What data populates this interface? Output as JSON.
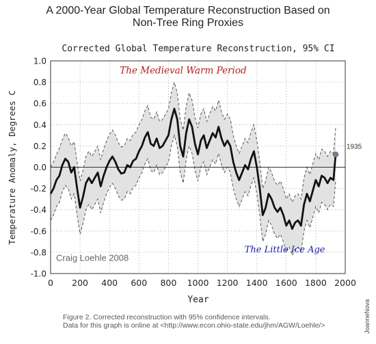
{
  "page": {
    "headline_line1": "A 2000-Year Global Temperature Reconstruction Based on",
    "headline_line2": "Non-Tree Ring Proxies",
    "caption_line1": "Figure 2. Corrected reconstruction with 95% confidence intervals.",
    "caption_line2": "Data for this graph is online at <http://www.econ.ohio-state.edu/jhm/AGW/Loehle/>",
    "watermark": "JoanneNova"
  },
  "chart_data": {
    "type": "line",
    "title": "Corrected Global Temperature Reconstruction, 95% CI",
    "xlabel": "Year",
    "ylabel": "Temperature Anomaly, Degrees C",
    "xlim": [
      0,
      2000
    ],
    "ylim": [
      -1.0,
      1.0
    ],
    "xticks": [
      0,
      200,
      400,
      600,
      800,
      1000,
      1200,
      1400,
      1600,
      1800,
      2000
    ],
    "yticks": [
      1.0,
      0.8,
      0.6,
      0.4,
      0.2,
      0.0,
      -0.2,
      -0.4,
      -0.6,
      -0.8,
      -1.0
    ],
    "grid": true,
    "colors": {
      "series": "#111111",
      "band": "#e2e2e2",
      "band_edge": "#555555",
      "marker": "#7a7a9c",
      "medieval": "#b01e1e",
      "lia": "#1a1aa8"
    },
    "annotations": [
      {
        "text": "The Medieval Warm Period",
        "x": 900,
        "y": 0.88
      },
      {
        "text": "The Little Ice Age",
        "x": 1590,
        "y": -0.8
      },
      {
        "text": "Craig Loehle 2008",
        "x": 40,
        "y": -0.88
      },
      {
        "text": "1935",
        "x": 1935,
        "y": 0.12
      }
    ],
    "series": [
      {
        "x": [
          0,
          20,
          40,
          60,
          80,
          100,
          120,
          140,
          160,
          180,
          200,
          220,
          240,
          260,
          280,
          300,
          320,
          340,
          360,
          380,
          400,
          420,
          440,
          460,
          480,
          500,
          520,
          540,
          560,
          580,
          600,
          620,
          640,
          660,
          680,
          700,
          720,
          740,
          760,
          780,
          800,
          820,
          840,
          860,
          880,
          900,
          920,
          940,
          960,
          980,
          1000,
          1020,
          1040,
          1060,
          1080,
          1100,
          1120,
          1140,
          1160,
          1180,
          1200,
          1220,
          1240,
          1260,
          1280,
          1300,
          1320,
          1340,
          1360,
          1380,
          1400,
          1420,
          1440,
          1460,
          1480,
          1500,
          1520,
          1540,
          1560,
          1580,
          1600,
          1620,
          1640,
          1660,
          1680,
          1700,
          1720,
          1740,
          1760,
          1780,
          1800,
          1820,
          1840,
          1860,
          1880,
          1900,
          1920,
          1935
        ],
        "values": [
          -0.25,
          -0.2,
          -0.12,
          -0.08,
          0.02,
          0.08,
          0.05,
          -0.05,
          0.0,
          -0.2,
          -0.38,
          -0.28,
          -0.15,
          -0.1,
          -0.15,
          -0.1,
          -0.05,
          -0.18,
          -0.08,
          0.0,
          0.06,
          0.1,
          0.05,
          -0.02,
          -0.06,
          -0.05,
          0.02,
          0.0,
          0.06,
          0.08,
          0.15,
          0.2,
          0.28,
          0.33,
          0.22,
          0.2,
          0.27,
          0.18,
          0.2,
          0.25,
          0.3,
          0.45,
          0.55,
          0.45,
          0.2,
          0.1,
          0.32,
          0.45,
          0.38,
          0.22,
          0.12,
          0.25,
          0.3,
          0.18,
          0.25,
          0.32,
          0.28,
          0.38,
          0.27,
          0.2,
          0.25,
          0.2,
          0.05,
          -0.05,
          -0.12,
          -0.05,
          0.02,
          -0.02,
          0.08,
          0.15,
          0.0,
          -0.2,
          -0.45,
          -0.38,
          -0.25,
          -0.3,
          -0.38,
          -0.42,
          -0.38,
          -0.45,
          -0.55,
          -0.5,
          -0.58,
          -0.52,
          -0.5,
          -0.55,
          -0.35,
          -0.25,
          -0.32,
          -0.22,
          -0.12,
          -0.18,
          -0.08,
          -0.1,
          -0.15,
          -0.1,
          -0.12,
          0.12
        ]
      }
    ],
    "confidence_band": {
      "upper": [
        0.0,
        0.05,
        0.12,
        0.18,
        0.26,
        0.32,
        0.28,
        0.2,
        0.24,
        0.05,
        -0.13,
        -0.03,
        0.1,
        0.15,
        0.1,
        0.15,
        0.2,
        0.07,
        0.17,
        0.25,
        0.31,
        0.35,
        0.3,
        0.23,
        0.19,
        0.2,
        0.27,
        0.25,
        0.31,
        0.33,
        0.4,
        0.45,
        0.53,
        0.58,
        0.47,
        0.45,
        0.52,
        0.43,
        0.45,
        0.5,
        0.55,
        0.7,
        0.8,
        0.7,
        0.45,
        0.35,
        0.57,
        0.7,
        0.63,
        0.47,
        0.37,
        0.5,
        0.55,
        0.43,
        0.5,
        0.57,
        0.53,
        0.63,
        0.52,
        0.45,
        0.5,
        0.45,
        0.3,
        0.2,
        0.13,
        0.2,
        0.27,
        0.23,
        0.33,
        0.4,
        0.25,
        0.05,
        -0.2,
        -0.13,
        0.0,
        -0.05,
        -0.13,
        -0.17,
        -0.13,
        -0.2,
        -0.3,
        -0.25,
        -0.33,
        -0.27,
        -0.25,
        -0.3,
        -0.1,
        0.0,
        -0.07,
        0.03,
        0.13,
        0.07,
        0.17,
        0.15,
        0.1,
        0.15,
        0.13,
        0.37
      ],
      "lower": [
        -0.5,
        -0.45,
        -0.37,
        -0.33,
        -0.23,
        -0.17,
        -0.2,
        -0.3,
        -0.25,
        -0.45,
        -0.63,
        -0.53,
        -0.4,
        -0.35,
        -0.4,
        -0.35,
        -0.3,
        -0.43,
        -0.33,
        -0.25,
        -0.19,
        -0.15,
        -0.2,
        -0.27,
        -0.31,
        -0.3,
        -0.23,
        -0.25,
        -0.19,
        -0.17,
        -0.1,
        -0.05,
        0.03,
        0.08,
        -0.03,
        -0.05,
        0.02,
        -0.07,
        -0.05,
        0.0,
        0.05,
        0.2,
        0.3,
        0.2,
        -0.05,
        -0.15,
        0.07,
        0.2,
        0.13,
        -0.03,
        -0.13,
        0.0,
        0.05,
        -0.07,
        0.0,
        0.07,
        0.03,
        0.13,
        0.02,
        -0.05,
        0.0,
        -0.05,
        -0.2,
        -0.3,
        -0.37,
        -0.3,
        -0.23,
        -0.27,
        -0.17,
        -0.1,
        -0.25,
        -0.45,
        -0.7,
        -0.63,
        -0.5,
        -0.55,
        -0.63,
        -0.67,
        -0.63,
        -0.7,
        -0.8,
        -0.75,
        -0.83,
        -0.77,
        -0.75,
        -0.8,
        -0.6,
        -0.5,
        -0.57,
        -0.47,
        -0.37,
        -0.43,
        -0.33,
        -0.35,
        -0.4,
        -0.35,
        -0.37,
        -0.13
      ]
    }
  }
}
